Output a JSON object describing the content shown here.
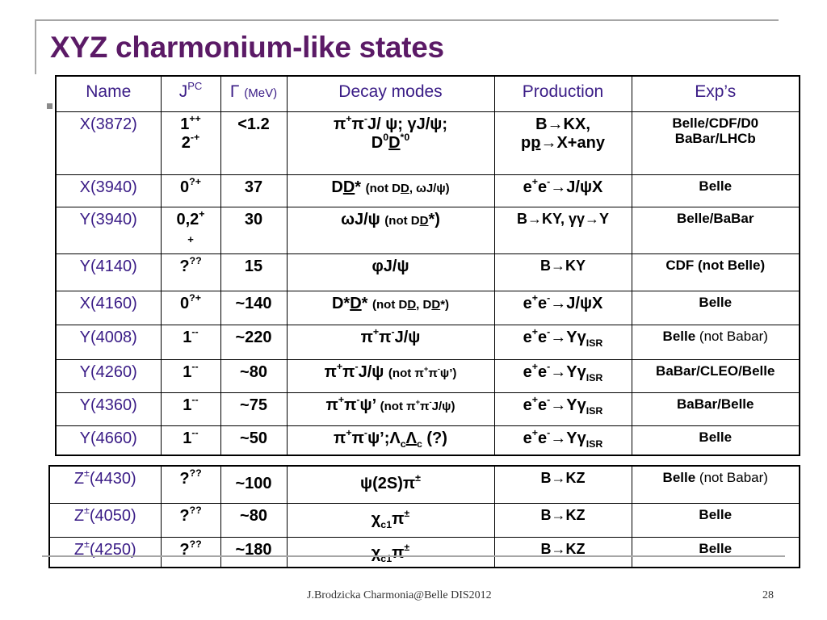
{
  "title": "XYZ charmonium-like states",
  "header": {
    "name": "Name",
    "jpc_main": "J",
    "jpc_sup": "PC",
    "width_main": "Γ",
    "width_unit": "(MeV)",
    "decay": "Decay modes",
    "production": "Production",
    "exps": "Exp’s"
  },
  "rows": [
    {
      "name": "X(3872)",
      "jpc1_main": "1",
      "jpc1_sup": "++",
      "jpc2_main": "2",
      "jpc2_sup": "-+",
      "width": "<1.2",
      "decay1": {
        "a": "π",
        "a_sup": "+",
        "b": "π",
        "b_sup": "-",
        "c": "J/ ψ; γJ/ψ;"
      },
      "decay2": {
        "a": "D",
        "a_sup": "0",
        "b": "D",
        "b_sup": "*0"
      },
      "prod1": "B→KX,",
      "prod2": {
        "a": "p",
        "b": "p",
        "c": "→X+any"
      },
      "exp1": "Belle/CDF/D0",
      "exp2": "BaBar/LHCb"
    },
    {
      "name": "X(3940)",
      "jpc_main": "0",
      "jpc_sup": "?+",
      "width": "37",
      "decay": {
        "a": "D",
        "b": "D",
        "c": "*",
        "paren1": "(not D",
        "paren2": "D",
        "paren3": ", ωJ/ψ)"
      },
      "prod": {
        "a": "e",
        "a_sup": "+",
        "b": "e",
        "b_sup": "-",
        "c": "→J/ψX"
      },
      "exp": "Belle"
    },
    {
      "name": "Y(3940)",
      "jpc_main": "0,2",
      "jpc_sup": "+",
      "jpc_line2": "+",
      "width": "30",
      "decay": {
        "a": "ωJ/ψ",
        "p1": "(not D",
        "p2": "D",
        "p3": "*)"
      },
      "prod": "B→KY, γγ→Y",
      "exp": "Belle/BaBar"
    },
    {
      "name": "Y(4140)",
      "jpc_main": "?",
      "jpc_sup": "??",
      "width": "15",
      "decay": "φJ/ψ",
      "prod": "B→KY",
      "exp": "CDF (not Belle)"
    },
    {
      "name": "X(4160)",
      "jpc_main": "0",
      "jpc_sup": "?+",
      "width": "~140",
      "decay": {
        "a": "D*",
        "b": "D",
        "c": "*",
        "p1": "(not D",
        "p2": "D",
        "p3": ", D",
        "p4": "D",
        "p5": "*)"
      },
      "prod": {
        "a": "e",
        "a_sup": "+",
        "b": "e",
        "b_sup": "-",
        "c": "→J/ψX"
      },
      "exp": "Belle"
    },
    {
      "name": "Y(4008)",
      "jpc_main": "1",
      "jpc_sup": "--",
      "width": "~220",
      "decay": {
        "a": "π",
        "a_sup": "+",
        "b": "π",
        "b_sup": "-",
        "c": "J/ψ"
      },
      "prod": {
        "a": "e",
        "a_sup": "+",
        "b": "e",
        "b_sup": "-",
        "c": "→Yγ",
        "c_sub": "ISR"
      },
      "exp": {
        "a": "Belle ",
        "b": "(not Babar)"
      }
    },
    {
      "name": "Y(4260)",
      "jpc_main": "1",
      "jpc_sup": "--",
      "width": "~80",
      "decay": {
        "a": "π",
        "a_sup": "+",
        "b": "π",
        "b_sup": "-",
        "c": "J/ψ",
        "p1": "(not π",
        "p1_sup": "+",
        "p2": "π",
        "p2_sup": "-",
        "p3": "ψ’)"
      },
      "prod": {
        "a": "e",
        "a_sup": "+",
        "b": "e",
        "b_sup": "-",
        "c": "→Yγ",
        "c_sub": "ISR"
      },
      "exp": "BaBar/CLEO/Belle"
    },
    {
      "name": "Y(4360)",
      "jpc_main": "1",
      "jpc_sup": "--",
      "width": "~75",
      "decay": {
        "a": "π",
        "a_sup": "+",
        "b": "π",
        "b_sup": "-",
        "c": "ψ’",
        "p1": "(not π",
        "p1_sup": "+",
        "p2": "π",
        "p2_sup": "-",
        "p3": "J/ψ)"
      },
      "prod": {
        "a": "e",
        "a_sup": "+",
        "b": "e",
        "b_sup": "-",
        "c": "→Yγ",
        "c_sub": "ISR"
      },
      "exp": "BaBar/Belle"
    },
    {
      "name": "Y(4660)",
      "jpc_main": "1",
      "jpc_sup": "--",
      "width": "~50",
      "decay": {
        "a": "π",
        "a_sup": "+",
        "b": "π",
        "b_sup": "-",
        "c": "ψ’;Λ",
        "c_sub": "c",
        "d": "Λ",
        "d_sub": "c",
        "e": " (?)"
      },
      "prod": {
        "a": "e",
        "a_sup": "+",
        "b": "e",
        "b_sup": "-",
        "c": "→Yγ",
        "c_sub": "ISR"
      },
      "exp": "Belle"
    }
  ],
  "zrows": [
    {
      "name_a": "Z",
      "name_sup": "±",
      "name_b": "(4430)",
      "jpc_main": "?",
      "jpc_sup": "??",
      "width": "~100",
      "decay": {
        "a": "ψ(2S)π",
        "a_sup": "±"
      },
      "prod": "B→KZ",
      "exp": {
        "a": "Belle ",
        "b": "(not Babar)"
      }
    },
    {
      "name_a": "Z",
      "name_sup": "±",
      "name_b": "(4050)",
      "jpc_main": "?",
      "jpc_sup": "??",
      "width": "~80",
      "decay": {
        "a": "χ",
        "a_sub": "c1",
        "b": "π",
        "b_sup": "±"
      },
      "prod": "B→KZ",
      "exp": "Belle"
    },
    {
      "name_a": "Z",
      "name_sup": "±",
      "name_b": "(4250)",
      "jpc_main": "?",
      "jpc_sup": "??",
      "width": "~180",
      "decay": {
        "a": "χ",
        "a_sub": "c1",
        "b": "π",
        "b_sup": "±"
      },
      "prod": "B→KZ",
      "exp": "Belle"
    }
  ],
  "footer": "J.Brodzicka  Charmonia@Belle   DIS2012",
  "page_number": "28",
  "colors": {
    "title": "#5b1a66",
    "name_text": "#3a1c86",
    "frame": "#a6a6a6"
  }
}
